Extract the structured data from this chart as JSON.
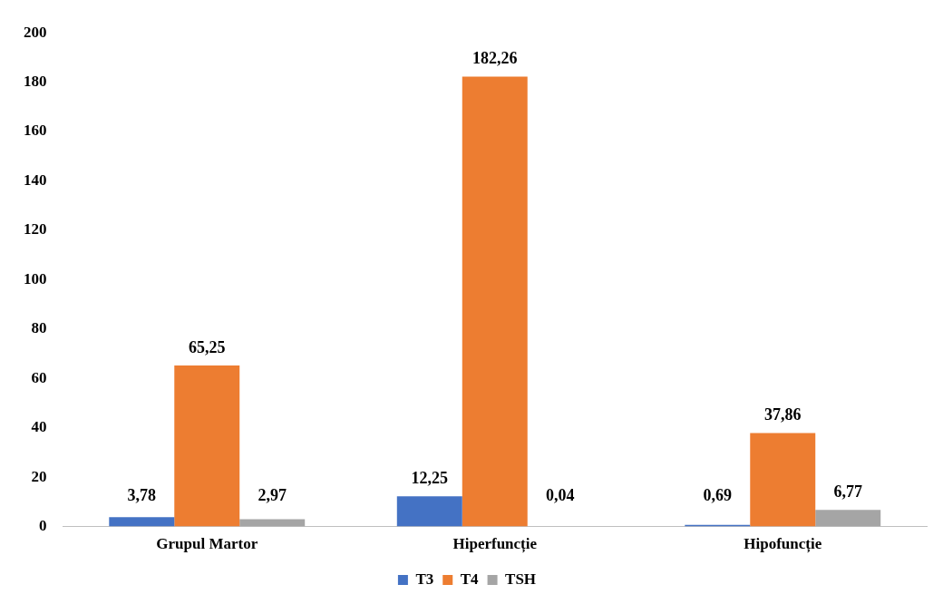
{
  "chart_data": {
    "type": "bar",
    "categories": [
      "Grupul Martor",
      "Hiperfuncție",
      "Hipofuncție"
    ],
    "series": [
      {
        "name": "T3",
        "color": "#4472c4",
        "values": [
          3.78,
          12.25,
          0.69
        ],
        "value_labels": [
          "3,78",
          "12,25",
          "0,69"
        ]
      },
      {
        "name": "T4",
        "color": "#ed7d31",
        "values": [
          65.25,
          182.26,
          37.86
        ],
        "value_labels": [
          "65,25",
          "182,26",
          "37,86"
        ]
      },
      {
        "name": "TSH",
        "color": "#a5a5a5",
        "values": [
          2.97,
          0.04,
          6.77
        ],
        "value_labels": [
          "2,97",
          "0,04",
          "6,77"
        ]
      }
    ],
    "ylim": [
      0,
      200
    ],
    "yticks": [
      0,
      20,
      40,
      60,
      80,
      100,
      120,
      140,
      160,
      180,
      200
    ],
    "grid": false,
    "legend": "bottom"
  }
}
